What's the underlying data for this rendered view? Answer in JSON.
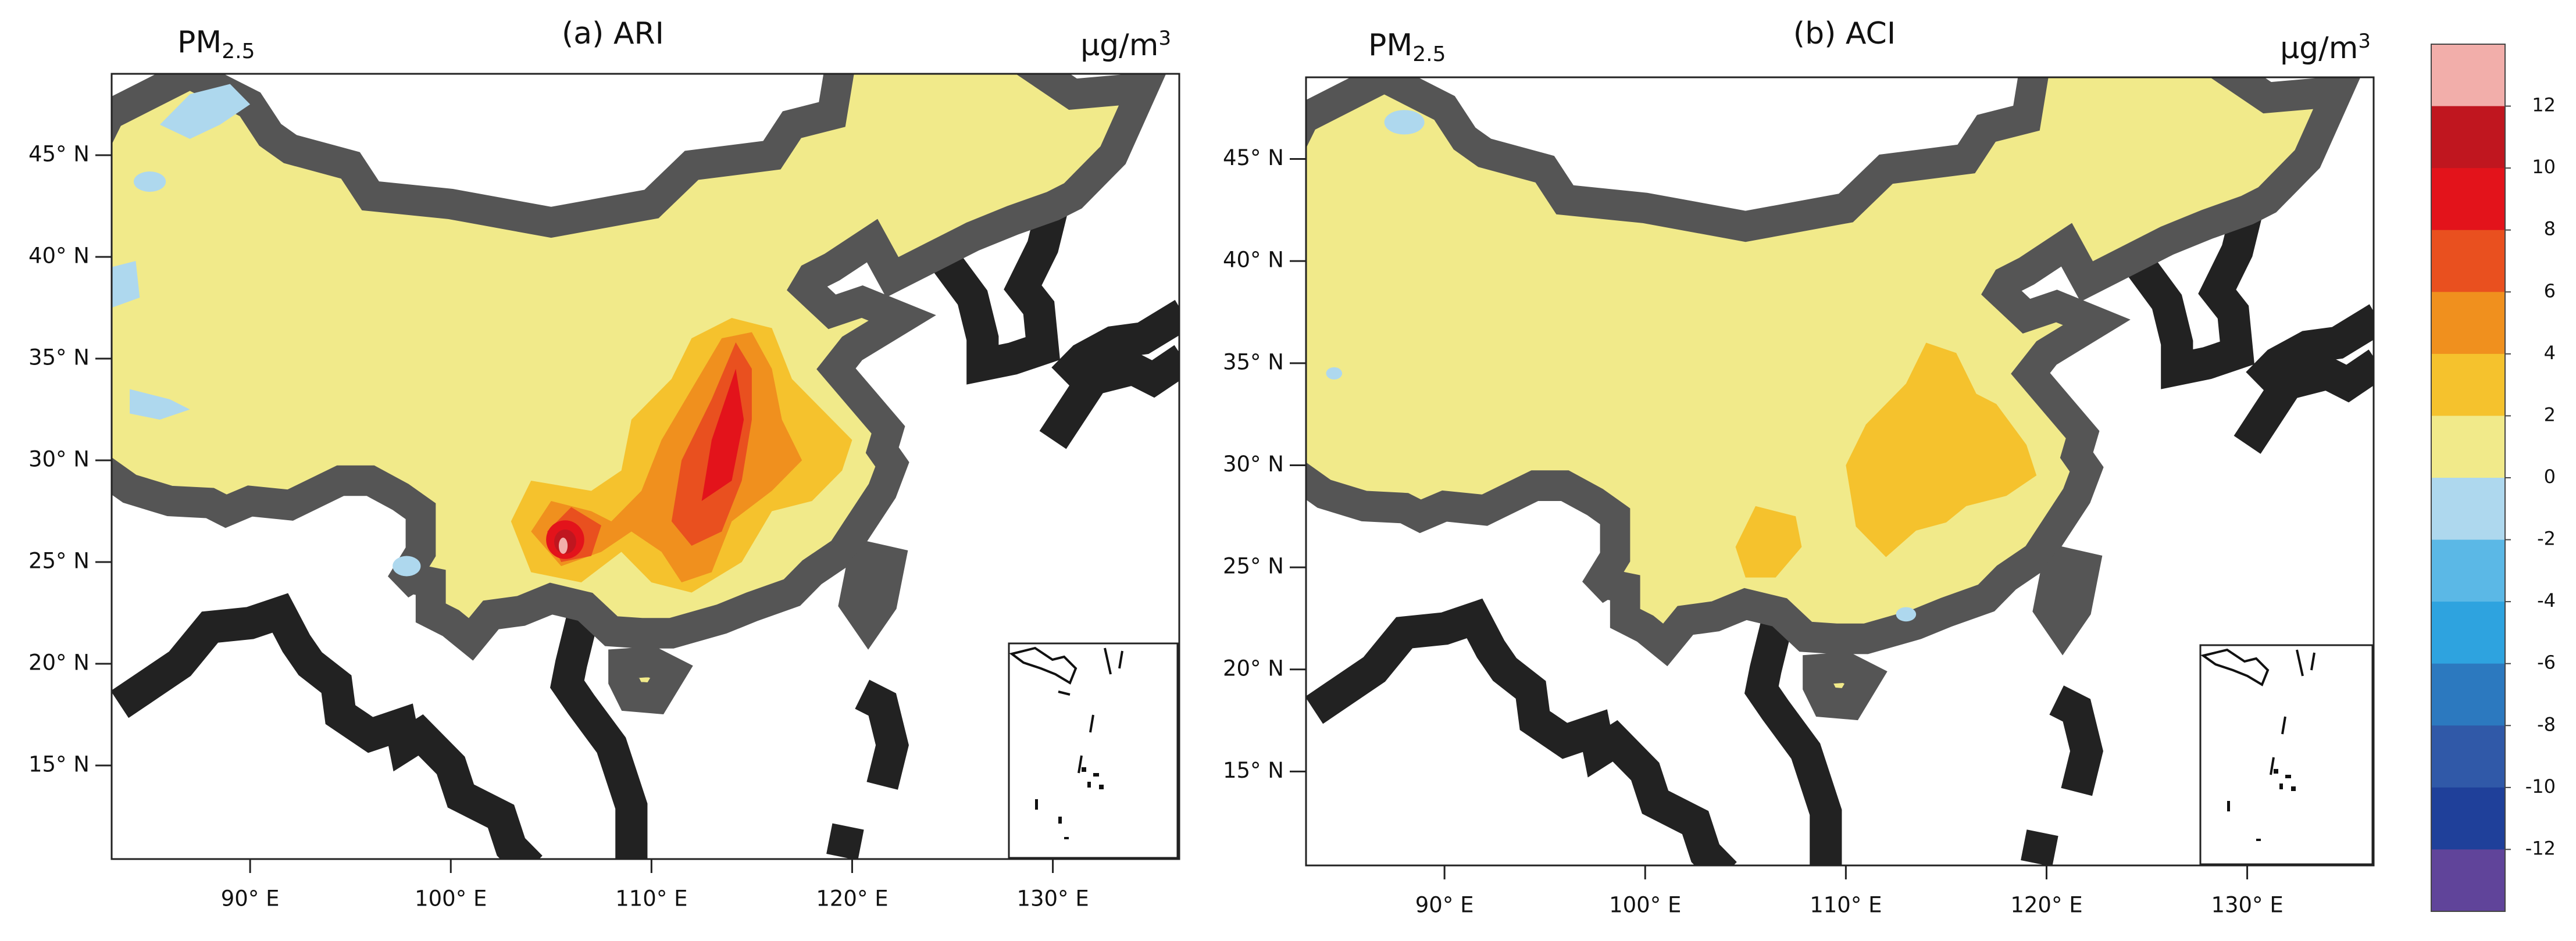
{
  "panels": [
    {
      "title": "(a) ARI",
      "variable": {
        "main": "PM",
        "sub": "2.5"
      },
      "unit": {
        "main": "μg/m",
        "sup": "3"
      },
      "xlim": [
        83.1,
        136.3
      ],
      "ylim": [
        10.4,
        49
      ],
      "xticks": [
        {
          "value": 90,
          "label": "90° E"
        },
        {
          "value": 100,
          "label": "100° E"
        },
        {
          "value": 110,
          "label": "110° E"
        },
        {
          "value": 120,
          "label": "120° E"
        },
        {
          "value": 130,
          "label": "130° E"
        }
      ],
      "yticks": [
        {
          "value": 15,
          "label": "15° N"
        },
        {
          "value": 20,
          "label": "20° N"
        },
        {
          "value": 25,
          "label": "25° N"
        },
        {
          "value": 30,
          "label": "30° N"
        },
        {
          "value": 35,
          "label": "35° N"
        },
        {
          "value": 40,
          "label": "40° N"
        },
        {
          "value": 45,
          "label": "45° N"
        }
      ]
    },
    {
      "title": "(b) ACI",
      "variable": {
        "main": "PM",
        "sub": "2.5"
      },
      "unit": {
        "main": "μg/m",
        "sup": "3"
      },
      "xlim": [
        83.1,
        136.3
      ],
      "ylim": [
        10.4,
        49
      ],
      "xticks": [
        {
          "value": 90,
          "label": "90° E"
        },
        {
          "value": 100,
          "label": "100° E"
        },
        {
          "value": 110,
          "label": "110° E"
        },
        {
          "value": 120,
          "label": "120° E"
        },
        {
          "value": 130,
          "label": "130° E"
        }
      ],
      "yticks": [
        {
          "value": 15,
          "label": "15° N"
        },
        {
          "value": 20,
          "label": "20° N"
        },
        {
          "value": 25,
          "label": "25° N"
        },
        {
          "value": 30,
          "label": "30° N"
        },
        {
          "value": 35,
          "label": "35° N"
        },
        {
          "value": 40,
          "label": "40° N"
        },
        {
          "value": 45,
          "label": "45° N"
        }
      ]
    }
  ],
  "colorbar": {
    "colors": [
      "#f2aeaa",
      "#c0161f",
      "#e3131b",
      "#e9501f",
      "#f0901e",
      "#f5c22d",
      "#f1ea8a",
      "#aed8ee",
      "#5bb8e6",
      "#2ea3df",
      "#2c79bf",
      "#3059a8",
      "#1f409a",
      "#60449a"
    ],
    "labels": [
      12,
      10,
      8,
      6,
      4,
      2,
      0,
      -2,
      -4,
      -6,
      -8,
      -10,
      -12
    ]
  }
}
